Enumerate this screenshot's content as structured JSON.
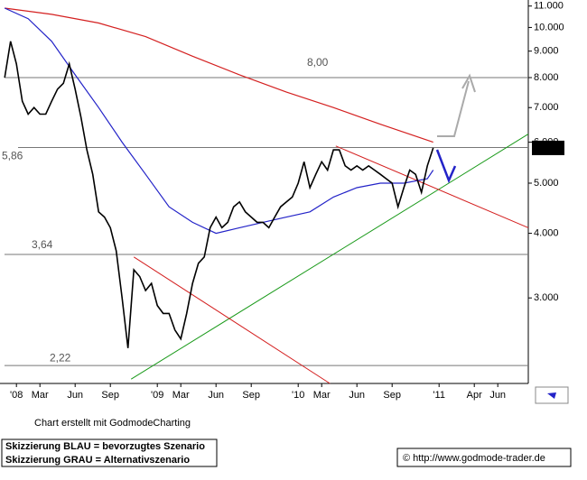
{
  "chart_data": {
    "type": "line",
    "log_scale": true,
    "xlim": [
      -1.4,
      43.6
    ],
    "ylim": [
      2.05,
      11.3
    ],
    "yticks": [
      {
        "value": 3,
        "label": "3.000"
      },
      {
        "value": 4,
        "label": "4.000"
      },
      {
        "value": 5,
        "label": "5.000"
      },
      {
        "value": 6,
        "label": "6.000"
      },
      {
        "value": 7,
        "label": "7.000"
      },
      {
        "value": 8,
        "label": "8.000"
      },
      {
        "value": 9,
        "label": "9.000"
      },
      {
        "value": 10,
        "label": "10.000"
      },
      {
        "value": 11,
        "label": "11.000"
      }
    ],
    "xticks": [
      {
        "value": 0,
        "label": "'08"
      },
      {
        "value": 2,
        "label": "Mar"
      },
      {
        "value": 5,
        "label": "Jun"
      },
      {
        "value": 8,
        "label": "Sep"
      },
      {
        "value": 12,
        "label": "'09"
      },
      {
        "value": 14,
        "label": "Mar"
      },
      {
        "value": 17,
        "label": "Jun"
      },
      {
        "value": 20,
        "label": "Sep"
      },
      {
        "value": 24,
        "label": "'10"
      },
      {
        "value": 26,
        "label": "Mar"
      },
      {
        "value": 29,
        "label": "Jun"
      },
      {
        "value": 32,
        "label": "Sep"
      },
      {
        "value": 36,
        "label": "'11"
      },
      {
        "value": 39,
        "label": "Apr"
      },
      {
        "value": 41,
        "label": "Jun"
      }
    ],
    "series": [
      {
        "color": "#000000",
        "x": [
          -1,
          -0.5,
          0,
          0.5,
          1,
          1.5,
          2,
          2.5,
          3,
          3.5,
          4,
          4.5,
          5,
          5.5,
          6,
          6.5,
          7,
          7.5,
          8,
          8.5,
          9,
          9.5,
          10,
          10.5,
          11,
          11.5,
          12,
          12.5,
          13,
          13.5,
          14,
          14.5,
          15,
          15.5,
          16,
          16.5,
          17,
          17.5,
          18,
          18.5,
          19,
          19.5,
          20,
          20.5,
          21,
          21.5,
          22,
          22.5,
          23,
          23.5,
          24,
          24.5,
          25,
          25.5,
          26,
          26.5,
          27,
          27.5,
          28,
          28.5,
          29,
          29.5,
          30,
          30.5,
          31,
          31.5,
          32,
          32.5,
          33,
          33.5,
          34,
          34.5,
          35,
          35.5
        ],
        "values": [
          8.0,
          9.4,
          8.5,
          7.2,
          6.8,
          7.0,
          6.8,
          6.8,
          7.2,
          7.6,
          7.8,
          8.5,
          7.6,
          6.7,
          5.8,
          5.2,
          4.4,
          4.3,
          4.1,
          3.7,
          3.0,
          2.4,
          3.4,
          3.3,
          3.1,
          3.2,
          2.9,
          2.8,
          2.8,
          2.6,
          2.5,
          2.8,
          3.2,
          3.5,
          3.6,
          4.1,
          4.3,
          4.1,
          4.2,
          4.5,
          4.6,
          4.4,
          4.3,
          4.2,
          4.2,
          4.1,
          4.3,
          4.5,
          4.6,
          4.7,
          5.0,
          5.5,
          4.9,
          5.2,
          5.5,
          5.3,
          5.8,
          5.8,
          5.4,
          5.3,
          5.4,
          5.3,
          5.4,
          5.3,
          5.2,
          5.1,
          5.0,
          4.5,
          4.9,
          5.3,
          5.2,
          4.8,
          5.4,
          5.85
        ]
      },
      {
        "color": "#2323c8",
        "x": [
          -1,
          1,
          3,
          5,
          7,
          9,
          11,
          13,
          15,
          17,
          19,
          21,
          23,
          25,
          27,
          29,
          31,
          33,
          35,
          35.5
        ],
        "values": [
          10.9,
          10.4,
          9.4,
          8.1,
          7.0,
          6.0,
          5.2,
          4.5,
          4.2,
          4.0,
          4.1,
          4.2,
          4.3,
          4.4,
          4.7,
          4.9,
          5.0,
          5.0,
          5.1,
          5.3
        ]
      },
      {
        "color": "#d42020",
        "x": [
          -1,
          3,
          7,
          11,
          15,
          19,
          23,
          27,
          31,
          35.5
        ],
        "values": [
          10.9,
          10.6,
          10.2,
          9.6,
          8.8,
          8.1,
          7.5,
          7.0,
          6.5,
          6.0
        ]
      }
    ],
    "trend_lines": [
      {
        "color": "#1a9a1a",
        "x": [
          9.77,
          43.6
        ],
        "values": [
          2.09,
          6.22
        ]
      },
      {
        "color": "#d42020",
        "x": [
          10,
          26.7
        ],
        "values": [
          3.6,
          2.05
        ]
      },
      {
        "color": "#d42020",
        "x": [
          27.2,
          43.6
        ],
        "values": [
          5.9,
          4.1
        ]
      }
    ],
    "levels": [
      {
        "value": 8.0,
        "label": "8,00"
      },
      {
        "value": 5.86,
        "label": "5,86"
      },
      {
        "value": 3.64,
        "label": "3,64"
      },
      {
        "value": 2.22,
        "label": "2,22"
      }
    ],
    "last_price": {
      "value": 5.85,
      "label": "5.850"
    },
    "credit": "Chart erstellt mit GodmodeCharting",
    "legend_lines": [
      "Skizzierung BLAU = bevorzugtes Szenario",
      "Skizzierung GRAU = Alternativszenario"
    ],
    "source": "© http://www.godmode-trader.de"
  }
}
